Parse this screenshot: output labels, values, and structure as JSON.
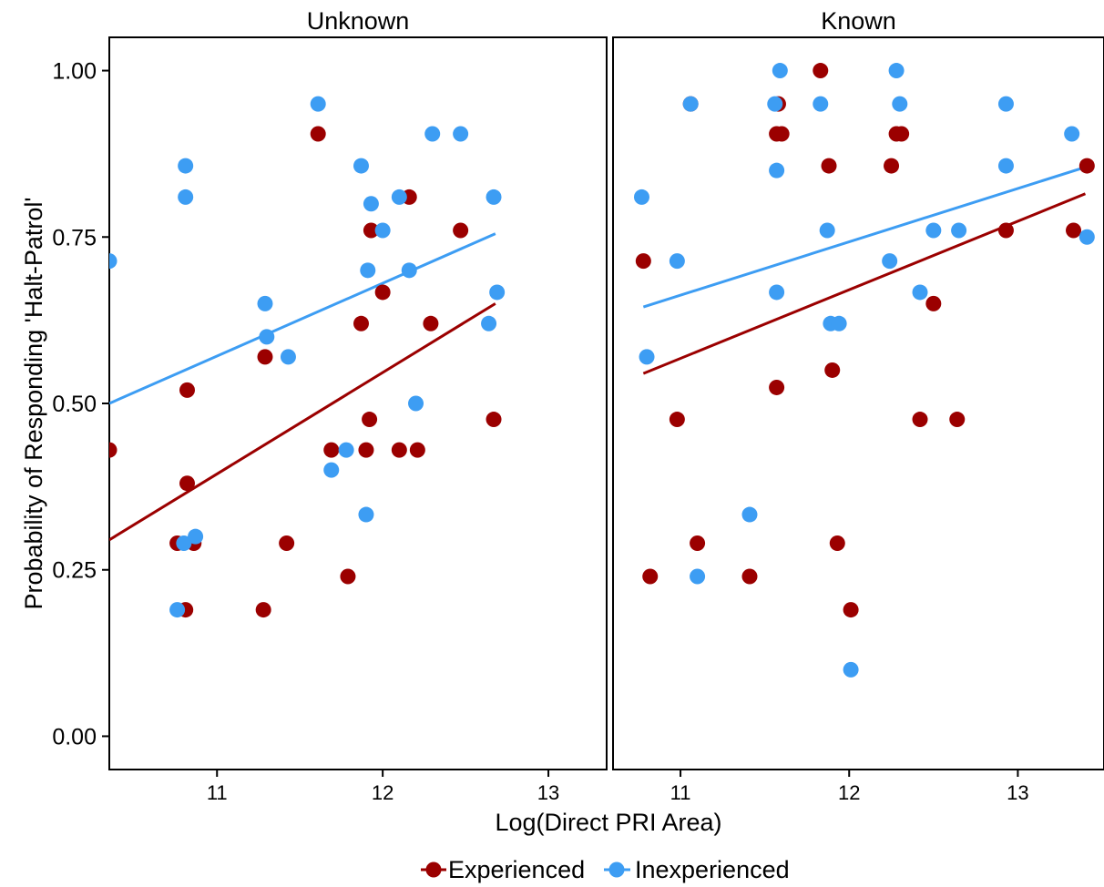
{
  "chart_data": {
    "type": "scatter",
    "xlabel": "Log(Direct PRI Area)",
    "ylabel": "Probability of Responding 'Halt-Patrol'",
    "ylim": [
      -0.05,
      1.05
    ],
    "yticks": [
      0.0,
      0.25,
      0.5,
      0.75,
      1.0
    ],
    "ytick_labels": [
      "0.00",
      "0.25",
      "0.50",
      "0.75",
      "1.00"
    ],
    "xticks": [
      11,
      12,
      13
    ],
    "xtick_labels": [
      "11",
      "12",
      "13"
    ],
    "grid": false,
    "legend": {
      "position": "bottom",
      "entries": [
        {
          "name": "Experienced",
          "color": "#9b0000"
        },
        {
          "name": "Inexperienced",
          "color": "#3d9df3"
        }
      ]
    },
    "panels": [
      {
        "title": "Unknown",
        "xlim": [
          10.35,
          13.5
        ],
        "series": [
          {
            "name": "Experienced",
            "color": "#9b0000",
            "points": [
              [
                10.35,
                0.43
              ],
              [
                10.76,
                0.29
              ],
              [
                10.81,
                0.19
              ],
              [
                10.82,
                0.52
              ],
              [
                10.82,
                0.38
              ],
              [
                10.86,
                0.29
              ],
              [
                11.28,
                0.19
              ],
              [
                11.29,
                0.57
              ],
              [
                11.42,
                0.29
              ],
              [
                11.61,
                0.905
              ],
              [
                11.69,
                0.43
              ],
              [
                11.79,
                0.24
              ],
              [
                11.87,
                0.62
              ],
              [
                11.9,
                0.43
              ],
              [
                11.92,
                0.476
              ],
              [
                11.93,
                0.76
              ],
              [
                12.0,
                0.667
              ],
              [
                12.1,
                0.43
              ],
              [
                12.16,
                0.81
              ],
              [
                12.21,
                0.43
              ],
              [
                12.29,
                0.62
              ],
              [
                12.47,
                0.76
              ],
              [
                12.67,
                0.476
              ]
            ],
            "fit": [
              [
                10.35,
                0.295
              ],
              [
                12.68,
                0.65
              ]
            ]
          },
          {
            "name": "Inexperienced",
            "color": "#3d9df3",
            "points": [
              [
                10.35,
                0.714
              ],
              [
                10.76,
                0.19
              ],
              [
                10.8,
                0.29
              ],
              [
                10.81,
                0.857
              ],
              [
                10.81,
                0.81
              ],
              [
                10.87,
                0.3
              ],
              [
                11.29,
                0.65
              ],
              [
                11.3,
                0.6
              ],
              [
                11.43,
                0.57
              ],
              [
                11.61,
                0.95
              ],
              [
                11.69,
                0.4
              ],
              [
                11.78,
                0.43
              ],
              [
                11.87,
                0.857
              ],
              [
                11.9,
                0.333
              ],
              [
                11.91,
                0.7
              ],
              [
                11.93,
                0.8
              ],
              [
                12.0,
                0.76
              ],
              [
                12.1,
                0.81
              ],
              [
                12.16,
                0.7
              ],
              [
                12.2,
                0.5
              ],
              [
                12.3,
                0.905
              ],
              [
                12.47,
                0.905
              ],
              [
                12.64,
                0.62
              ],
              [
                12.67,
                0.81
              ],
              [
                12.69,
                0.667
              ]
            ],
            "fit": [
              [
                10.35,
                0.5
              ],
              [
                12.68,
                0.755
              ]
            ]
          }
        ]
      },
      {
        "title": "Known",
        "xlim": [
          10.6,
          13.5
        ],
        "series": [
          {
            "name": "Experienced",
            "color": "#9b0000",
            "points": [
              [
                10.78,
                0.714
              ],
              [
                10.82,
                0.24
              ],
              [
                10.98,
                0.476
              ],
              [
                11.06,
                0.95
              ],
              [
                11.1,
                0.29
              ],
              [
                11.41,
                0.24
              ],
              [
                11.57,
                0.905
              ],
              [
                11.57,
                0.524
              ],
              [
                11.58,
                0.95
              ],
              [
                11.6,
                0.905
              ],
              [
                11.83,
                1.0
              ],
              [
                11.88,
                0.857
              ],
              [
                11.9,
                0.55
              ],
              [
                11.93,
                0.29
              ],
              [
                12.01,
                0.19
              ],
              [
                12.25,
                0.857
              ],
              [
                12.28,
                0.905
              ],
              [
                12.31,
                0.905
              ],
              [
                12.42,
                0.476
              ],
              [
                12.5,
                0.65
              ],
              [
                12.64,
                0.476
              ],
              [
                12.93,
                0.76
              ],
              [
                13.33,
                0.76
              ],
              [
                13.41,
                0.857
              ]
            ],
            "fit": [
              [
                10.78,
                0.545
              ],
              [
                13.4,
                0.815
              ]
            ]
          },
          {
            "name": "Inexperienced",
            "color": "#3d9df3",
            "points": [
              [
                10.77,
                0.81
              ],
              [
                10.8,
                0.57
              ],
              [
                10.98,
                0.714
              ],
              [
                11.06,
                0.95
              ],
              [
                11.1,
                0.24
              ],
              [
                11.41,
                0.333
              ],
              [
                11.56,
                0.95
              ],
              [
                11.57,
                0.85
              ],
              [
                11.57,
                0.667
              ],
              [
                11.59,
                1.0
              ],
              [
                11.83,
                0.95
              ],
              [
                11.87,
                0.76
              ],
              [
                11.89,
                0.62
              ],
              [
                11.94,
                0.62
              ],
              [
                12.01,
                0.1
              ],
              [
                12.24,
                0.714
              ],
              [
                12.28,
                1.0
              ],
              [
                12.3,
                0.95
              ],
              [
                12.42,
                0.667
              ],
              [
                12.5,
                0.76
              ],
              [
                12.65,
                0.76
              ],
              [
                12.93,
                0.95
              ],
              [
                12.93,
                0.857
              ],
              [
                13.32,
                0.905
              ],
              [
                13.41,
                0.75
              ]
            ],
            "fit": [
              [
                10.78,
                0.645
              ],
              [
                13.4,
                0.855
              ]
            ]
          }
        ]
      }
    ]
  }
}
